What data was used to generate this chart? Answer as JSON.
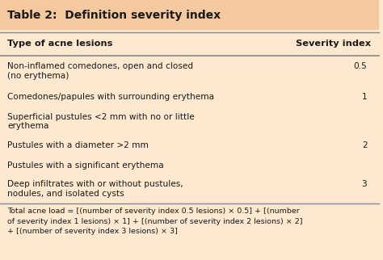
{
  "title": "Table 2:  Definition severity index",
  "title_bg": "#f5c9a0",
  "table_bg": "#fde8d0",
  "header_col1": "Type of acne lesions",
  "header_col2": "Severity index",
  "rows": [
    {
      "lesion": "Non-inflamed comedones, open and closed\n(no erythema)",
      "index": "0.5"
    },
    {
      "lesion": "Comedones/papules with surrounding erythema",
      "index": "1"
    },
    {
      "lesion": "Superficial pustules <2 mm with no or little\nerythema",
      "index": ""
    },
    {
      "lesion": "Pustules with a diameter >2 mm",
      "index": "2"
    },
    {
      "lesion": "Pustules with a significant erythema",
      "index": ""
    },
    {
      "lesion": "Deep infiltrates with or without pustules,\nnodules, and isolated cysts",
      "index": "3"
    }
  ],
  "footer_line1": "Total acne load = [(number of severity index 0.5 lesions) × 0.5] + [(number",
  "footer_line2": "of severity index 1 lesions) × 1] + [(number of severity index 2 lesions) × 2]",
  "footer_line3": "+ [(number of severity index 3 lesions) × 3]",
  "text_color": "#1a1a1a",
  "line_color": "#888888",
  "figsize": [
    4.74,
    3.22
  ],
  "dpi": 100
}
